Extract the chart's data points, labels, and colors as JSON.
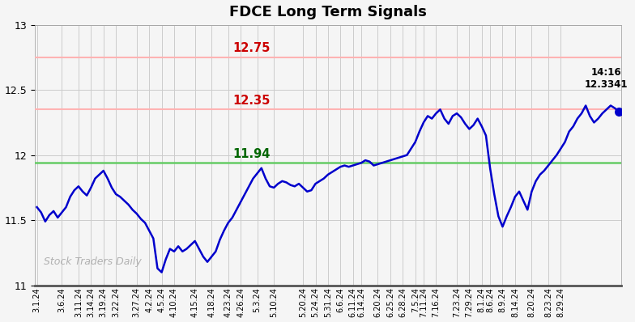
{
  "title": "FDCE Long Term Signals",
  "watermark": "Stock Traders Daily",
  "hline_red1": 12.75,
  "hline_red2": 12.35,
  "hline_green": 11.94,
  "hline_red1_label": "12.75",
  "hline_red2_label": "12.35",
  "hline_green_label": "11.94",
  "last_label_time": "14:16",
  "last_label_value": "12.3341",
  "last_value": 12.3341,
  "ylim": [
    11.0,
    13.0
  ],
  "yticks": [
    11.0,
    11.5,
    12.0,
    12.5,
    13.0
  ],
  "line_color": "#0000cc",
  "hline_red_color": "#ffb3b3",
  "hline_red_text_color": "#cc0000",
  "hline_green_color": "#66cc66",
  "hline_green_text_color": "#006600",
  "background_color": "#f5f5f5",
  "grid_color": "#cccccc",
  "x_labels": [
    "3.1.24",
    "3.6.24",
    "3.11.24",
    "3.14.24",
    "3.19.24",
    "3.22.24",
    "3.27.24",
    "4.2.24",
    "4.5.24",
    "4.10.24",
    "4.15.24",
    "4.18.24",
    "4.23.24",
    "4.26.24",
    "5.3.24",
    "5.10.24",
    "5.20.24",
    "5.24.24",
    "5.31.24",
    "6.6.24",
    "6.11.24",
    "6.14.24",
    "6.20.24",
    "6.25.24",
    "6.28.24",
    "7.5.24",
    "7.11.24",
    "7.16.24",
    "7.23.24",
    "7.29.24",
    "8.1.24",
    "8.6.24",
    "8.9.24",
    "8.14.24",
    "8.20.24",
    "8.23.24",
    "8.29.24"
  ],
  "y_values": [
    11.6,
    11.56,
    11.49,
    11.54,
    11.57,
    11.52,
    11.56,
    11.6,
    11.68,
    11.73,
    11.76,
    11.72,
    11.69,
    11.75,
    11.82,
    11.85,
    11.88,
    11.82,
    11.75,
    11.7,
    11.68,
    11.65,
    11.62,
    11.58,
    11.55,
    11.51,
    11.48,
    11.42,
    11.36,
    11.13,
    11.1,
    11.2,
    11.28,
    11.26,
    11.3,
    11.26,
    11.28,
    11.31,
    11.34,
    11.28,
    11.22,
    11.18,
    11.22,
    11.26,
    11.35,
    11.42,
    11.48,
    11.52,
    11.58,
    11.64,
    11.7,
    11.76,
    11.82,
    11.86,
    11.9,
    11.82,
    11.76,
    11.75,
    11.78,
    11.8,
    11.79,
    11.77,
    11.76,
    11.78,
    11.75,
    11.72,
    11.73,
    11.78,
    11.8,
    11.82,
    11.85,
    11.87,
    11.89,
    11.91,
    11.92,
    11.91,
    11.92,
    11.93,
    11.94,
    11.96,
    11.95,
    11.92,
    11.93,
    11.94,
    11.95,
    11.96,
    11.97,
    11.98,
    11.99,
    12.0,
    12.05,
    12.1,
    12.18,
    12.25,
    12.3,
    12.28,
    12.32,
    12.35,
    12.28,
    12.24,
    12.3,
    12.32,
    12.29,
    12.24,
    12.2,
    12.23,
    12.28,
    12.22,
    12.15,
    11.9,
    11.7,
    11.53,
    11.45,
    11.53,
    11.6,
    11.68,
    11.72,
    11.65,
    11.58,
    11.72,
    11.8,
    11.85,
    11.88,
    11.92,
    11.96,
    12.0,
    12.05,
    12.1,
    12.18,
    12.22,
    12.28,
    12.32,
    12.38,
    12.3,
    12.25,
    12.28,
    12.32,
    12.35,
    12.38,
    12.36,
    12.3341
  ],
  "x_tick_indices": [
    0,
    6,
    10,
    13,
    16,
    19,
    24,
    27,
    30,
    33,
    38,
    42,
    46,
    49,
    53,
    57,
    64,
    67,
    70,
    73,
    76,
    78,
    82,
    85,
    88,
    91,
    93,
    96,
    101,
    104,
    107,
    109,
    112,
    115,
    119,
    123,
    126
  ]
}
